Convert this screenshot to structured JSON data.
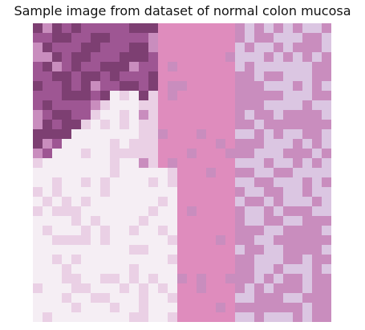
{
  "figure": {
    "title": "Sample image from dataset of normal colon mucosa"
  },
  "palette": {
    "white": "#f5eef4",
    "pale_pink": "#ead0e5",
    "pink": "#df8cbd",
    "mauve": "#c98dbe",
    "purple": "#9e5693",
    "dark_purple": "#7d3f72",
    "lavender": "#dbc6e2"
  }
}
